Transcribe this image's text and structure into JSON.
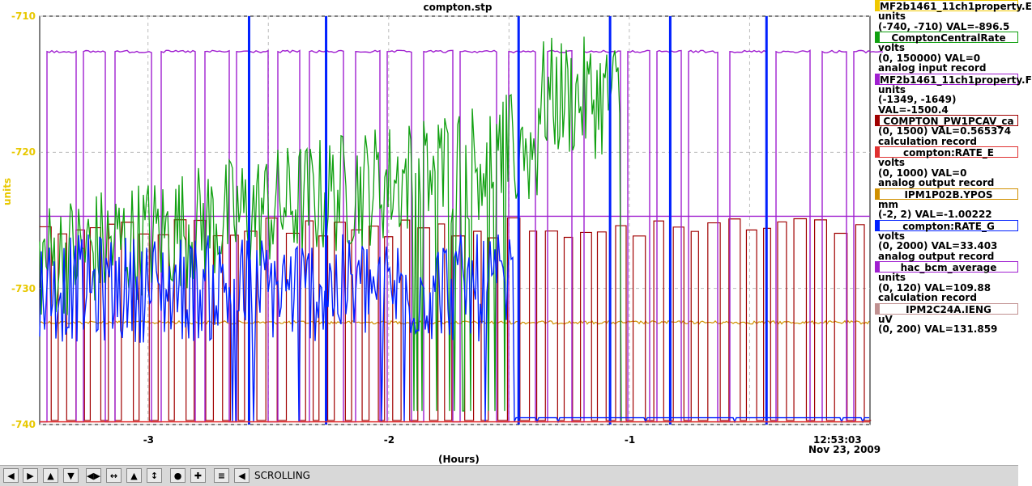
{
  "window_title": "compton.stp",
  "chart_data": {
    "type": "line",
    "title": "compton.stp",
    "ylabel": "units",
    "xlabel": "(Hours)",
    "ylim": [
      -740,
      -710
    ],
    "xlim": [
      -3.45,
      0
    ],
    "yticks": [
      "-710",
      "-720",
      "-730",
      "-740"
    ],
    "xticks": [
      "-3",
      "-2",
      "-1"
    ],
    "xtick_values": [
      -3,
      -2,
      -1
    ],
    "ytick_values": [
      -710,
      -720,
      -730,
      -740
    ],
    "timestamp_line1": "12:53:03",
    "timestamp_line2": "Nov 23, 2009",
    "grid": true,
    "legend_position": "right",
    "series": [
      {
        "name": "MF2b1461_11ch1property.E",
        "color": "#f0c800"
      },
      {
        "name": "ComptonCentralRate",
        "color": "#10a010"
      },
      {
        "name": "MF2b1461_11ch1property.F",
        "color": "#a020d0"
      },
      {
        "name": "COMPTON_PW1PCAV_ca",
        "color": "#a00000"
      },
      {
        "name": "compton:RATE_E",
        "color": "#e03030"
      },
      {
        "name": "IPM1P02B.YPOS",
        "color": "#d09000"
      },
      {
        "name": "compton:RATE_G",
        "color": "#0020ff"
      },
      {
        "name": "hac_bcm_average",
        "color": "#a020d0"
      },
      {
        "name": "IPM2C24A.IENG",
        "color": "#c09090"
      }
    ]
  },
  "legend": [
    {
      "name": "MF2b1461_11ch1property.E",
      "color": "#f0c800",
      "lines": [
        "units",
        "(-740, -710) VAL=-896.5"
      ]
    },
    {
      "name": "ComptonCentralRate",
      "color": "#10a010",
      "lines": [
        "volts",
        "(0, 150000) VAL=0",
        "analog input record"
      ]
    },
    {
      "name": "MF2b1461_11ch1property.F",
      "color": "#a020d0",
      "lines": [
        "units",
        "(-1349, -1649) VAL=-1500.4"
      ]
    },
    {
      "name": "COMPTON_PW1PCAV_ca",
      "color": "#a00000",
      "lines": [
        "(0, 1500) VAL=0.565374",
        "calculation record"
      ]
    },
    {
      "name": "compton:RATE_E",
      "color": "#e03030",
      "lines": [
        "volts",
        "(0, 1000) VAL=0",
        "analog output record"
      ]
    },
    {
      "name": "IPM1P02B.YPOS",
      "color": "#d09000",
      "lines": [
        "mm",
        "(-2, 2) VAL=-1.00222"
      ]
    },
    {
      "name": "compton:RATE_G",
      "color": "#0020ff",
      "lines": [
        "volts",
        "(0, 2000) VAL=33.403",
        "analog output record"
      ]
    },
    {
      "name": "hac_bcm_average",
      "color": "#a020d0",
      "lines": [
        "units",
        "(0, 120) VAL=109.88",
        "calculation record"
      ]
    },
    {
      "name": "IPM2C24A.IENG",
      "color": "#c09090",
      "lines": [
        "uV",
        "(0, 200) VAL=131.859"
      ]
    }
  ],
  "toolbar": {
    "buttons": [
      "left-arrow",
      "right-arrow",
      "up-arrow",
      "down-arrow",
      "zoom-horizontal",
      "zoom-fit-horizontal",
      "zoom-vertical",
      "zoom-fit-vertical",
      "record",
      "crosshair",
      "fit",
      "scroll-back"
    ],
    "status": "SCROLLING"
  }
}
